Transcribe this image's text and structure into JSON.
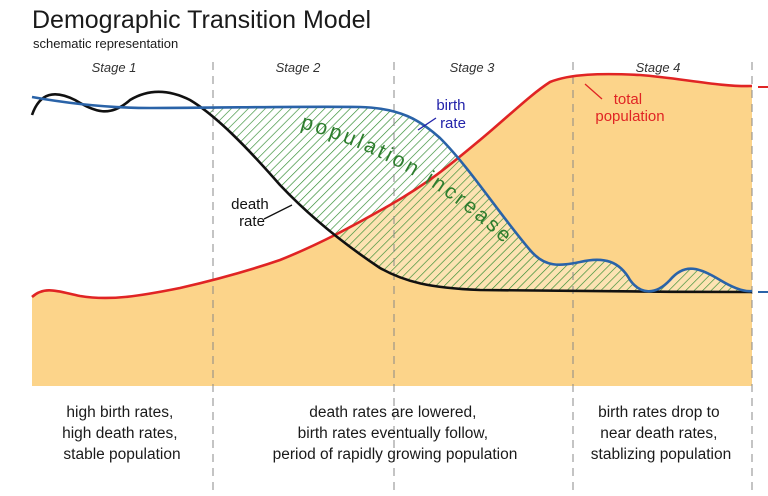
{
  "title": "Demographic Transition Model",
  "subtitle": "schematic representation",
  "stages": [
    "Stage 1",
    "Stage 2",
    "Stage 3",
    "Stage 4"
  ],
  "labels": {
    "birth_rate": [
      "birth",
      "rate"
    ],
    "death_rate": [
      "death",
      "rate"
    ],
    "total_population": [
      "total",
      "population"
    ],
    "population_increase": "population increase"
  },
  "descriptions": [
    [
      "high birth rates,",
      "high death rates,",
      "stable population"
    ],
    [
      "death rates are lowered,",
      "birth rates eventually follow,",
      "period of rapidly growing population"
    ],
    [
      "birth rates drop to",
      "near death rates,",
      "stablizing population"
    ]
  ],
  "colors": {
    "birth_rate": "#2a63a8",
    "death_rate": "#111111",
    "total_population": "#e02424",
    "population_fill": "#fcd48a",
    "increase_hatch": "#2f8a2f",
    "population_increase_text": "#2e7d2e",
    "birth_label": "#2222aa",
    "population_label": "#e02424",
    "divider": "#888888"
  }
}
